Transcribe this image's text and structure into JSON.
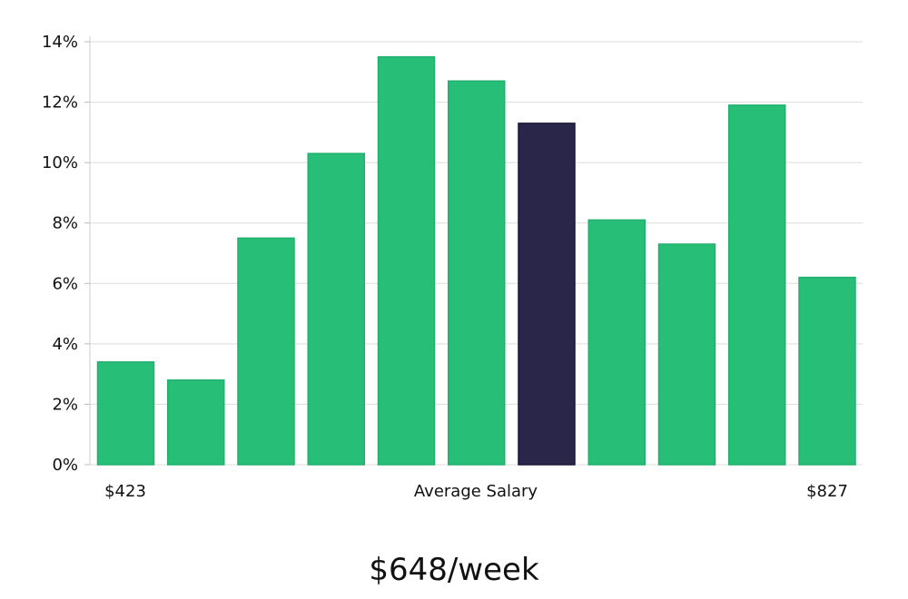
{
  "chart_data": {
    "type": "bar",
    "categories": [
      "$423",
      "",
      "",
      "",
      "",
      "",
      "",
      "",
      "",
      "",
      "$827"
    ],
    "values": [
      3.4,
      2.8,
      7.5,
      10.3,
      13.5,
      12.7,
      11.3,
      8.1,
      7.3,
      11.9,
      6.2
    ],
    "highlight_index": 6,
    "y_unit": "%",
    "ylim": [
      0,
      14
    ],
    "yticks": [
      0,
      2,
      4,
      6,
      8,
      10,
      12,
      14
    ],
    "xlabel": "Average Salary",
    "x_start_label": "$423",
    "x_end_label": "$827",
    "grid": true,
    "colors": {
      "bar": "#27be78",
      "highlight": "#29264a",
      "grid": "#dddddd"
    }
  },
  "summary": {
    "value": "$648/week"
  }
}
